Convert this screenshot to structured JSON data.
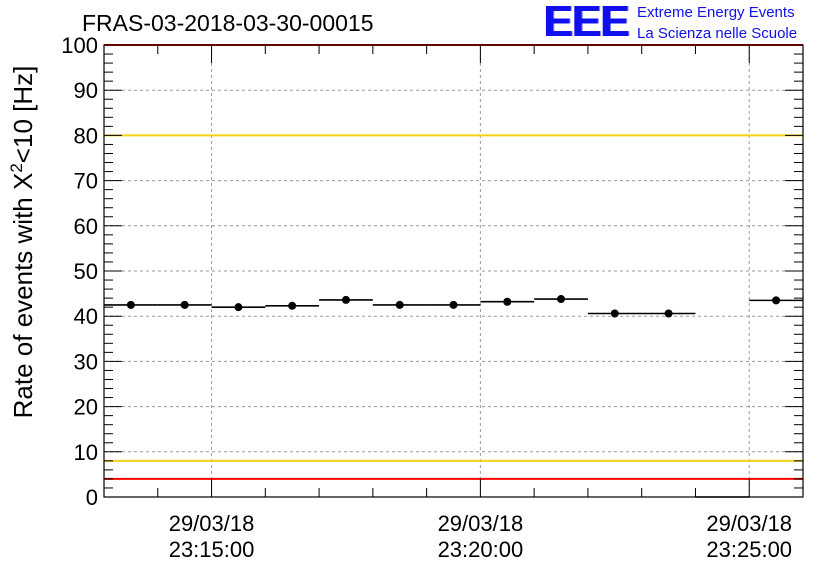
{
  "header": {
    "run_title": "FRAS-03-2018-03-30-00015",
    "logo_mark": "EEE",
    "logo_line1": "Extreme Energy Events",
    "logo_line2": "La Scienza nelle Scuole"
  },
  "colors": {
    "logo": "#1010ee",
    "limit_red": "#ff0000",
    "limit_yellow": "#f5d21a",
    "grid": "#9a9a9a",
    "points": "#000000"
  },
  "chart_data": {
    "type": "scatter",
    "ylabel_prefix": "Rate of events with X",
    "ylabel_sup": "2",
    "ylabel_suffix": "<10 [Hz]",
    "ylim": [
      0,
      100
    ],
    "y_ticks": [
      "0",
      "10",
      "20",
      "30",
      "40",
      "50",
      "60",
      "70",
      "80",
      "90",
      "100"
    ],
    "x_tick_labels": [
      {
        "time": "23:15:00",
        "date": "29/03/18",
        "seconds": 900
      },
      {
        "time": "23:20:00",
        "date": "29/03/18",
        "seconds": 1200
      },
      {
        "time": "23:25:00",
        "date": "29/03/18",
        "seconds": 1500
      }
    ],
    "xlim_seconds": [
      780,
      1560
    ],
    "bin_width_seconds": 60,
    "series": [
      {
        "x_seconds": [
          810,
          870,
          930,
          990,
          1050,
          1110,
          1170,
          1230,
          1290,
          1350,
          1410,
          1470,
          1530
        ],
        "values": [
          42.5,
          42.5,
          42.0,
          42.3,
          43.6,
          42.5,
          42.5,
          43.2,
          43.8,
          40.6,
          40.6,
          0,
          43.5
        ]
      }
    ],
    "reference_lines": [
      {
        "value": 100,
        "color": "red"
      },
      {
        "value": 80,
        "color": "yellow"
      },
      {
        "value": 8,
        "color": "yellow"
      },
      {
        "value": 4,
        "color": "red"
      }
    ],
    "grid": true,
    "legend": "none"
  }
}
